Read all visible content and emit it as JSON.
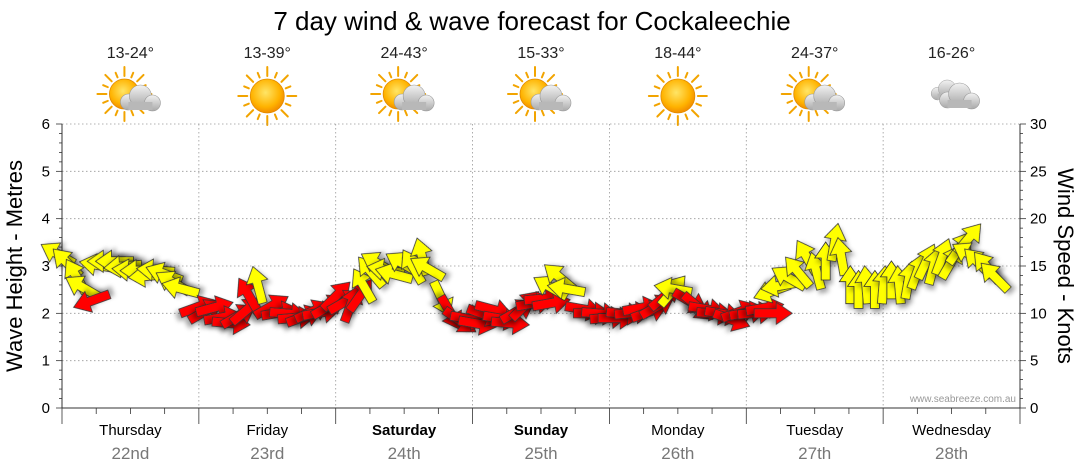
{
  "title": "7 day wind & wave forecast for Cockaleechie",
  "credit": "www.seabreeze.com.au",
  "colors": {
    "light_wind": "#ffff00",
    "strong_wind": "#ff0000",
    "grid": "#999999",
    "axis": "#333333",
    "date_text": "#777777"
  },
  "days": [
    {
      "name": "Thursday",
      "date": "22nd",
      "temp": "13-24°",
      "weather": "sun-cloud-icon",
      "bold": false
    },
    {
      "name": "Friday",
      "date": "23rd",
      "temp": "13-39°",
      "weather": "sun-icon",
      "bold": false
    },
    {
      "name": "Saturday",
      "date": "24th",
      "temp": "24-43°",
      "weather": "sun-cloud-icon",
      "bold": true
    },
    {
      "name": "Sunday",
      "date": "25th",
      "temp": "15-33°",
      "weather": "sun-cloud-icon",
      "bold": true
    },
    {
      "name": "Monday",
      "date": "26th",
      "temp": "18-44°",
      "weather": "sun-icon",
      "bold": false
    },
    {
      "name": "Tuesday",
      "date": "27th",
      "temp": "24-37°",
      "weather": "sun-cloud-icon",
      "bold": false
    },
    {
      "name": "Wednesday",
      "date": "28th",
      "temp": "16-26°",
      "weather": "cloud-icon",
      "bold": false
    }
  ],
  "chart_data": {
    "type": "scatter",
    "title": "7 day wind & wave forecast for Cockaleechie",
    "ylabel": "Wave Height - Metres",
    "y2label": "Wind Speed - Knots",
    "ylim": [
      0,
      6
    ],
    "y2lim": [
      0,
      30
    ],
    "yticks": [
      "0",
      "1",
      "2",
      "3",
      "4",
      "5",
      "6"
    ],
    "y2ticks": [
      "0",
      "5",
      "10",
      "15",
      "20",
      "25",
      "30"
    ],
    "x_unit": "days from Thursday 00:00",
    "xlim": [
      0,
      7
    ],
    "strong_threshold_knots": 12,
    "series": [
      {
        "name": "Wind speed (knots) and direction (degrees, arrow heading)",
        "points": [
          {
            "x": 0.0,
            "knots": 16.0,
            "dir": 300
          },
          {
            "x": 0.06,
            "knots": 15.0,
            "dir": 315
          },
          {
            "x": 0.12,
            "knots": 13.5,
            "dir": 330
          },
          {
            "x": 0.18,
            "knots": 12.5,
            "dir": 300
          },
          {
            "x": 0.25,
            "knots": 11.5,
            "dir": 250
          },
          {
            "x": 0.3,
            "knots": 15.0,
            "dir": 280
          },
          {
            "x": 0.36,
            "knots": 15.5,
            "dir": 270
          },
          {
            "x": 0.42,
            "knots": 15.5,
            "dir": 270
          },
          {
            "x": 0.48,
            "knots": 15.0,
            "dir": 265
          },
          {
            "x": 0.54,
            "knots": 14.5,
            "dir": 275
          },
          {
            "x": 0.6,
            "knots": 14.5,
            "dir": 270
          },
          {
            "x": 0.66,
            "knots": 14.0,
            "dir": 265
          },
          {
            "x": 0.72,
            "knots": 14.5,
            "dir": 275
          },
          {
            "x": 0.78,
            "knots": 14.0,
            "dir": 290
          },
          {
            "x": 0.84,
            "knots": 13.0,
            "dir": 300
          },
          {
            "x": 0.9,
            "knots": 12.5,
            "dir": 285
          },
          {
            "x": 0.96,
            "knots": 10.5,
            "dir": 70
          },
          {
            "x": 1.02,
            "knots": 10.0,
            "dir": 60
          },
          {
            "x": 1.08,
            "knots": 10.5,
            "dir": 75
          },
          {
            "x": 1.14,
            "knots": 9.5,
            "dir": 80
          },
          {
            "x": 1.2,
            "knots": 9.0,
            "dir": 95
          },
          {
            "x": 1.26,
            "knots": 9.5,
            "dir": 60
          },
          {
            "x": 1.32,
            "knots": 10.0,
            "dir": 50
          },
          {
            "x": 1.38,
            "knots": 11.5,
            "dir": 330
          },
          {
            "x": 1.44,
            "knots": 12.5,
            "dir": 345
          },
          {
            "x": 1.5,
            "knots": 10.5,
            "dir": 60
          },
          {
            "x": 1.56,
            "knots": 10.0,
            "dir": 80
          },
          {
            "x": 1.62,
            "knots": 10.0,
            "dir": 95
          },
          {
            "x": 1.68,
            "knots": 9.5,
            "dir": 85
          },
          {
            "x": 1.74,
            "knots": 9.5,
            "dir": 70
          },
          {
            "x": 1.8,
            "knots": 10.0,
            "dir": 65
          },
          {
            "x": 1.86,
            "knots": 10.0,
            "dir": 80
          },
          {
            "x": 1.92,
            "knots": 10.5,
            "dir": 60
          },
          {
            "x": 1.98,
            "knots": 11.5,
            "dir": 45
          },
          {
            "x": 2.04,
            "knots": 11.0,
            "dir": 60
          },
          {
            "x": 2.1,
            "knots": 10.5,
            "dir": 20
          },
          {
            "x": 2.16,
            "knots": 11.5,
            "dir": 35
          },
          {
            "x": 2.22,
            "knots": 12.5,
            "dir": 330
          },
          {
            "x": 2.28,
            "knots": 14.0,
            "dir": 320
          },
          {
            "x": 2.34,
            "knots": 15.0,
            "dir": 300
          },
          {
            "x": 2.4,
            "knots": 14.5,
            "dir": 280
          },
          {
            "x": 2.46,
            "knots": 14.0,
            "dir": 285
          },
          {
            "x": 2.52,
            "knots": 15.0,
            "dir": 300
          },
          {
            "x": 2.58,
            "knots": 14.5,
            "dir": 330
          },
          {
            "x": 2.64,
            "knots": 15.5,
            "dir": 345
          },
          {
            "x": 2.7,
            "knots": 14.5,
            "dir": 300
          },
          {
            "x": 2.76,
            "knots": 12.0,
            "dir": 155
          },
          {
            "x": 2.82,
            "knots": 10.5,
            "dir": 150
          },
          {
            "x": 2.88,
            "knots": 9.5,
            "dir": 125
          },
          {
            "x": 2.94,
            "knots": 9.5,
            "dir": 100
          },
          {
            "x": 3.0,
            "knots": 9.0,
            "dir": 100
          },
          {
            "x": 3.06,
            "knots": 10.0,
            "dir": 110
          },
          {
            "x": 3.12,
            "knots": 10.5,
            "dir": 105
          },
          {
            "x": 3.18,
            "knots": 9.5,
            "dir": 100
          },
          {
            "x": 3.24,
            "knots": 9.0,
            "dir": 95
          },
          {
            "x": 3.3,
            "knots": 10.0,
            "dir": 60
          },
          {
            "x": 3.36,
            "knots": 10.5,
            "dir": 45
          },
          {
            "x": 3.42,
            "knots": 11.0,
            "dir": 80
          },
          {
            "x": 3.48,
            "knots": 11.5,
            "dir": 85
          },
          {
            "x": 3.54,
            "knots": 11.0,
            "dir": 80
          },
          {
            "x": 3.6,
            "knots": 12.5,
            "dir": 300
          },
          {
            "x": 3.66,
            "knots": 13.5,
            "dir": 310
          },
          {
            "x": 3.72,
            "knots": 12.5,
            "dir": 280
          },
          {
            "x": 3.78,
            "knots": 10.5,
            "dir": 100
          },
          {
            "x": 3.84,
            "knots": 10.0,
            "dir": 90
          },
          {
            "x": 3.9,
            "knots": 10.0,
            "dir": 95
          },
          {
            "x": 3.96,
            "knots": 9.5,
            "dir": 85
          },
          {
            "x": 4.02,
            "knots": 9.5,
            "dir": 90
          },
          {
            "x": 4.08,
            "knots": 10.0,
            "dir": 95
          },
          {
            "x": 4.14,
            "knots": 10.0,
            "dir": 85
          },
          {
            "x": 4.2,
            "knots": 10.5,
            "dir": 80
          },
          {
            "x": 4.26,
            "knots": 10.0,
            "dir": 70
          },
          {
            "x": 4.32,
            "knots": 10.5,
            "dir": 60
          },
          {
            "x": 4.38,
            "knots": 11.5,
            "dir": 50
          },
          {
            "x": 4.44,
            "knots": 12.0,
            "dir": 40
          },
          {
            "x": 4.5,
            "knots": 12.5,
            "dir": 280
          },
          {
            "x": 4.56,
            "knots": 11.5,
            "dir": 120
          },
          {
            "x": 4.62,
            "knots": 11.0,
            "dir": 130
          },
          {
            "x": 4.68,
            "knots": 10.5,
            "dir": 100
          },
          {
            "x": 4.74,
            "knots": 10.0,
            "dir": 95
          },
          {
            "x": 4.8,
            "knots": 10.0,
            "dir": 100
          },
          {
            "x": 4.86,
            "knots": 9.5,
            "dir": 110
          },
          {
            "x": 4.92,
            "knots": 10.0,
            "dir": 70
          },
          {
            "x": 4.98,
            "knots": 10.0,
            "dir": 80
          },
          {
            "x": 5.04,
            "knots": 10.0,
            "dir": 85
          },
          {
            "x": 5.1,
            "knots": 10.5,
            "dir": 80
          },
          {
            "x": 5.16,
            "knots": 10.0,
            "dir": 90
          },
          {
            "x": 5.22,
            "knots": 12.5,
            "dir": 250
          },
          {
            "x": 5.28,
            "knots": 13.0,
            "dir": 260
          },
          {
            "x": 5.34,
            "knots": 13.5,
            "dir": 300
          },
          {
            "x": 5.4,
            "knots": 14.0,
            "dir": 320
          },
          {
            "x": 5.46,
            "knots": 15.5,
            "dir": 330
          },
          {
            "x": 5.52,
            "knots": 14.0,
            "dir": 345
          },
          {
            "x": 5.58,
            "knots": 15.0,
            "dir": 0
          },
          {
            "x": 5.64,
            "knots": 17.0,
            "dir": 10
          },
          {
            "x": 5.7,
            "knots": 15.5,
            "dir": 350
          },
          {
            "x": 5.76,
            "knots": 12.5,
            "dir": 0
          },
          {
            "x": 5.82,
            "knots": 12.0,
            "dir": 0
          },
          {
            "x": 5.88,
            "knots": 12.5,
            "dir": 355
          },
          {
            "x": 5.94,
            "knots": 12.0,
            "dir": 0
          },
          {
            "x": 6.0,
            "knots": 12.5,
            "dir": 5
          },
          {
            "x": 6.06,
            "knots": 13.0,
            "dir": 0
          },
          {
            "x": 6.12,
            "knots": 12.5,
            "dir": 355
          },
          {
            "x": 6.18,
            "knots": 13.0,
            "dir": 10
          },
          {
            "x": 6.24,
            "knots": 14.0,
            "dir": 20
          },
          {
            "x": 6.3,
            "knots": 15.0,
            "dir": 25
          },
          {
            "x": 6.36,
            "knots": 14.5,
            "dir": 15
          },
          {
            "x": 6.42,
            "knots": 15.5,
            "dir": 20
          },
          {
            "x": 6.48,
            "knots": 15.0,
            "dir": 30
          },
          {
            "x": 6.54,
            "knots": 16.5,
            "dir": 35
          },
          {
            "x": 6.6,
            "knots": 17.5,
            "dir": 40
          },
          {
            "x": 6.66,
            "knots": 16.0,
            "dir": 300
          },
          {
            "x": 6.72,
            "knots": 15.0,
            "dir": 315
          },
          {
            "x": 6.78,
            "knots": 14.5,
            "dir": 320
          },
          {
            "x": 6.84,
            "knots": 13.5,
            "dir": 315
          }
        ]
      }
    ]
  }
}
